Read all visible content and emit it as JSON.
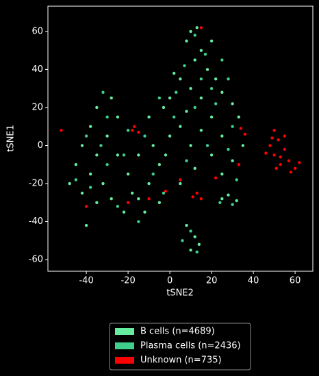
{
  "chart_data": {
    "type": "scatter",
    "xlabel": "tSNE2",
    "ylabel": "tSNE1",
    "xlim": [
      -58.4,
      68.5
    ],
    "ylim": [
      -66.1,
      73.3
    ],
    "xticks": [
      -40,
      -20,
      0,
      20,
      40,
      60
    ],
    "yticks": [
      -60,
      -40,
      -20,
      0,
      20,
      40,
      60
    ],
    "series": [
      {
        "name": "B cells (n=4689)",
        "color": "#66ec9f",
        "x": [
          10,
          13,
          8,
          15,
          12,
          18,
          5,
          22,
          10,
          25,
          0,
          15,
          30,
          -3,
          8,
          20,
          33,
          5,
          15,
          25,
          35,
          -10,
          0,
          10,
          20,
          30,
          12,
          25,
          -8,
          -15,
          -5,
          -20,
          -10,
          -18,
          -5,
          -12,
          -22,
          -28,
          -35,
          -25,
          -38,
          -30,
          -42,
          -35,
          -25,
          -45,
          -38,
          -48,
          -42,
          -32,
          -28,
          -35,
          -40,
          8,
          12,
          10,
          14,
          25,
          32,
          28,
          -15,
          2,
          20,
          5,
          -2
        ],
        "y": [
          60,
          62,
          55,
          50,
          45,
          40,
          35,
          35,
          30,
          28,
          25,
          25,
          22,
          20,
          18,
          15,
          15,
          10,
          8,
          5,
          0,
          15,
          5,
          0,
          -5,
          -8,
          -12,
          -15,
          0,
          -5,
          -10,
          -15,
          -20,
          -25,
          -30,
          -35,
          -35,
          25,
          20,
          15,
          10,
          5,
          0,
          -5,
          -5,
          -10,
          -15,
          -20,
          -25,
          -20,
          -28,
          -30,
          -42,
          -42,
          -48,
          -55,
          -52,
          -28,
          -29,
          -26,
          -28,
          38,
          55,
          -20,
          -5
        ]
      },
      {
        "name": "Plasma cells (n=2436)",
        "color": "#3fd18c",
        "x": [
          12,
          17,
          7,
          20,
          3,
          28,
          12,
          -5,
          22,
          30,
          2,
          18,
          28,
          8,
          32,
          -12,
          -8,
          -22,
          -15,
          -3,
          -30,
          -40,
          -33,
          -45,
          -38,
          -30,
          -25,
          10,
          13,
          6,
          30,
          24,
          -20,
          -32,
          15,
          25
        ],
        "y": [
          58,
          48,
          42,
          30,
          28,
          35,
          20,
          25,
          22,
          10,
          15,
          0,
          -2,
          -8,
          -18,
          5,
          -15,
          -5,
          -40,
          -25,
          15,
          5,
          0,
          -18,
          -22,
          -10,
          -32,
          -45,
          -56,
          -50,
          -31,
          -30,
          8,
          28,
          35,
          45
        ]
      },
      {
        "name": "Unknown (n=735)",
        "color": "#ff0000",
        "x": [
          50,
          52,
          48,
          55,
          50,
          57,
          53,
          60,
          46,
          58,
          51,
          62,
          49,
          55,
          53,
          -17,
          -15,
          -18,
          13,
          11,
          15,
          34,
          36,
          33,
          -2,
          -40,
          -52,
          -20,
          22,
          15,
          -10,
          5
        ],
        "y": [
          8,
          3,
          0,
          -2,
          -5,
          -8,
          -10,
          -12,
          -4,
          -14,
          -12,
          -9,
          4,
          5,
          -6,
          10,
          7,
          8,
          -25,
          -27,
          -28,
          9,
          6,
          -10,
          -24,
          -32,
          8,
          -30,
          -17,
          62,
          -28,
          -18
        ]
      }
    ]
  }
}
